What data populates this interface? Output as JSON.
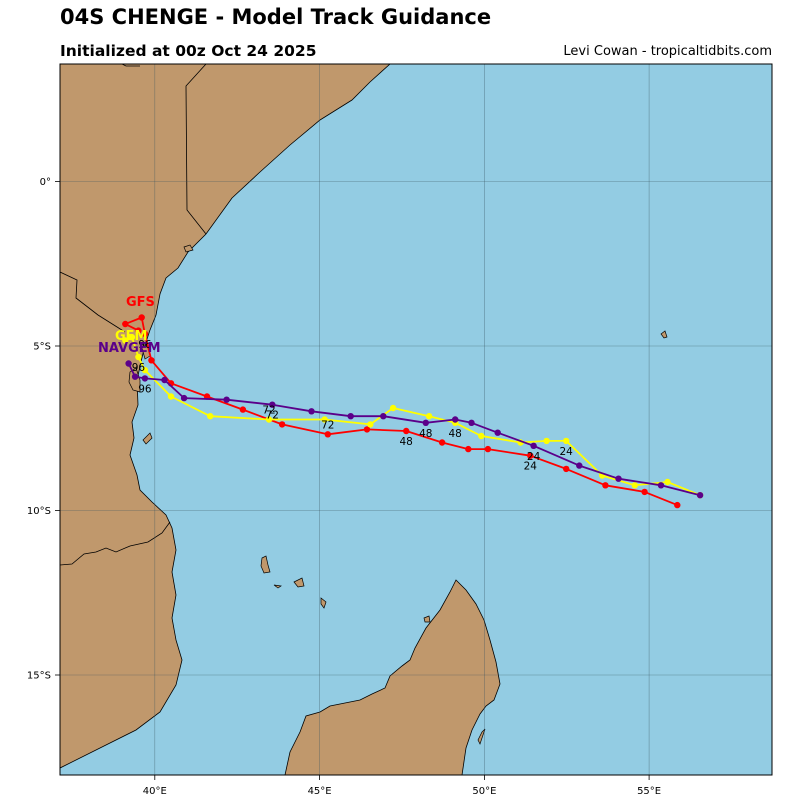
{
  "header": {
    "title": "04S CHENGE - Model Track Guidance",
    "subtitle": "Initialized at 00z Oct 24 2025",
    "credit": "Levi Cowan - tropicaltidbits.com"
  },
  "map": {
    "colors": {
      "ocean": "#93cce3",
      "land": "#c0986c",
      "border": "#000000",
      "grid": "#3a5560"
    },
    "lon_range": [
      37.1,
      58.9
    ],
    "lat_range": [
      -18.0,
      3.6
    ],
    "lon_ticks": [
      {
        "value": 40,
        "label": "40°E"
      },
      {
        "value": 45,
        "label": "45°E"
      },
      {
        "value": 50,
        "label": "50°E"
      },
      {
        "value": 55,
        "label": "55°E"
      }
    ],
    "lat_ticks": [
      {
        "value": 0,
        "label": "0°"
      },
      {
        "value": -5,
        "label": "5°S"
      },
      {
        "value": -10,
        "label": "10°S"
      },
      {
        "value": -15,
        "label": "15°S"
      }
    ]
  },
  "chart_data": {
    "type": "scatter",
    "title": "04S CHENGE - Model Track Guidance",
    "subtitle": "Initialized at 00z Oct 24 2025",
    "x_unit": "longitude (°E)",
    "y_unit": "latitude (°, negative = S)",
    "xlim": [
      37.1,
      58.9
    ],
    "ylim": [
      -18.0,
      3.6
    ],
    "grid": true,
    "series": [
      {
        "name": "GFS",
        "color": "#ff0000",
        "points": [
          [
            56.0,
            -9.8
          ],
          [
            55.0,
            -9.4
          ],
          [
            53.8,
            -9.2
          ],
          [
            52.6,
            -8.7
          ],
          [
            51.5,
            -8.3
          ],
          [
            50.2,
            -8.1
          ],
          [
            49.6,
            -8.1
          ],
          [
            48.8,
            -7.9
          ],
          [
            47.7,
            -7.55
          ],
          [
            46.5,
            -7.5
          ],
          [
            45.3,
            -7.65
          ],
          [
            43.9,
            -7.35
          ],
          [
            42.7,
            -6.9
          ],
          [
            41.6,
            -6.5
          ],
          [
            40.5,
            -6.1
          ],
          [
            39.9,
            -5.4
          ],
          [
            39.7,
            -4.6
          ],
          [
            39.6,
            -4.1
          ],
          [
            39.1,
            -4.3
          ],
          [
            39.5,
            -4.5
          ]
        ],
        "hour_labels": [
          {
            "text": "24",
            "at": [
              51.5,
              -8.3
            ],
            "pos": "below"
          },
          {
            "text": "48",
            "at": [
              47.7,
              -7.55
            ],
            "pos": "below"
          },
          {
            "text": "72",
            "at": [
              45.3,
              -7.65
            ],
            "pos": "above"
          },
          {
            "text": "96",
            "at": [
              39.7,
              -4.6
            ],
            "pos": "below"
          }
        ]
      },
      {
        "name": "GEM",
        "color": "#ffff00",
        "points": [
          [
            56.7,
            -9.5
          ],
          [
            55.7,
            -9.1
          ],
          [
            54.7,
            -9.2
          ],
          [
            53.7,
            -8.9
          ],
          [
            52.6,
            -7.85
          ],
          [
            52.0,
            -7.85
          ],
          [
            51.2,
            -7.9
          ],
          [
            50.0,
            -7.7
          ],
          [
            49.2,
            -7.3
          ],
          [
            48.4,
            -7.1
          ],
          [
            47.3,
            -6.85
          ],
          [
            46.6,
            -7.35
          ],
          [
            45.2,
            -7.2
          ],
          [
            43.5,
            -7.2
          ],
          [
            41.7,
            -7.1
          ],
          [
            40.5,
            -6.5
          ],
          [
            39.7,
            -5.7
          ],
          [
            39.5,
            -5.3
          ],
          [
            39.3,
            -4.7
          ],
          [
            39.1,
            -4.8
          ]
        ],
        "hour_labels": [
          {
            "text": "24",
            "at": [
              52.6,
              -7.85
            ],
            "pos": "below"
          },
          {
            "text": "48",
            "at": [
              49.2,
              -7.3
            ],
            "pos": "below"
          },
          {
            "text": "72",
            "at": [
              43.5,
              -7.2
            ],
            "pos": "above"
          },
          {
            "text": "96",
            "at": [
              39.5,
              -5.3
            ],
            "pos": "below"
          }
        ]
      },
      {
        "name": "NAVGEM",
        "color": "#5b008a",
        "points": [
          [
            56.7,
            -9.5
          ],
          [
            55.5,
            -9.2
          ],
          [
            54.2,
            -9.0
          ],
          [
            53.0,
            -8.6
          ],
          [
            51.6,
            -8.0
          ],
          [
            50.5,
            -7.6
          ],
          [
            49.7,
            -7.3
          ],
          [
            49.2,
            -7.2
          ],
          [
            48.3,
            -7.3
          ],
          [
            47.0,
            -7.1
          ],
          [
            46.0,
            -7.1
          ],
          [
            44.8,
            -6.95
          ],
          [
            43.6,
            -6.75
          ],
          [
            42.2,
            -6.6
          ],
          [
            40.9,
            -6.55
          ],
          [
            40.3,
            -6.0
          ],
          [
            39.7,
            -5.95
          ],
          [
            39.4,
            -5.9
          ],
          [
            39.2,
            -5.5
          ]
        ],
        "hour_labels": [
          {
            "text": "24",
            "at": [
              51.6,
              -8.0
            ],
            "pos": "below"
          },
          {
            "text": "48",
            "at": [
              48.3,
              -7.3
            ],
            "pos": "below"
          },
          {
            "text": "72",
            "at": [
              43.6,
              -6.75
            ],
            "pos": "below"
          },
          {
            "text": "96",
            "at": [
              39.7,
              -5.95
            ],
            "pos": "below"
          }
        ]
      }
    ]
  }
}
